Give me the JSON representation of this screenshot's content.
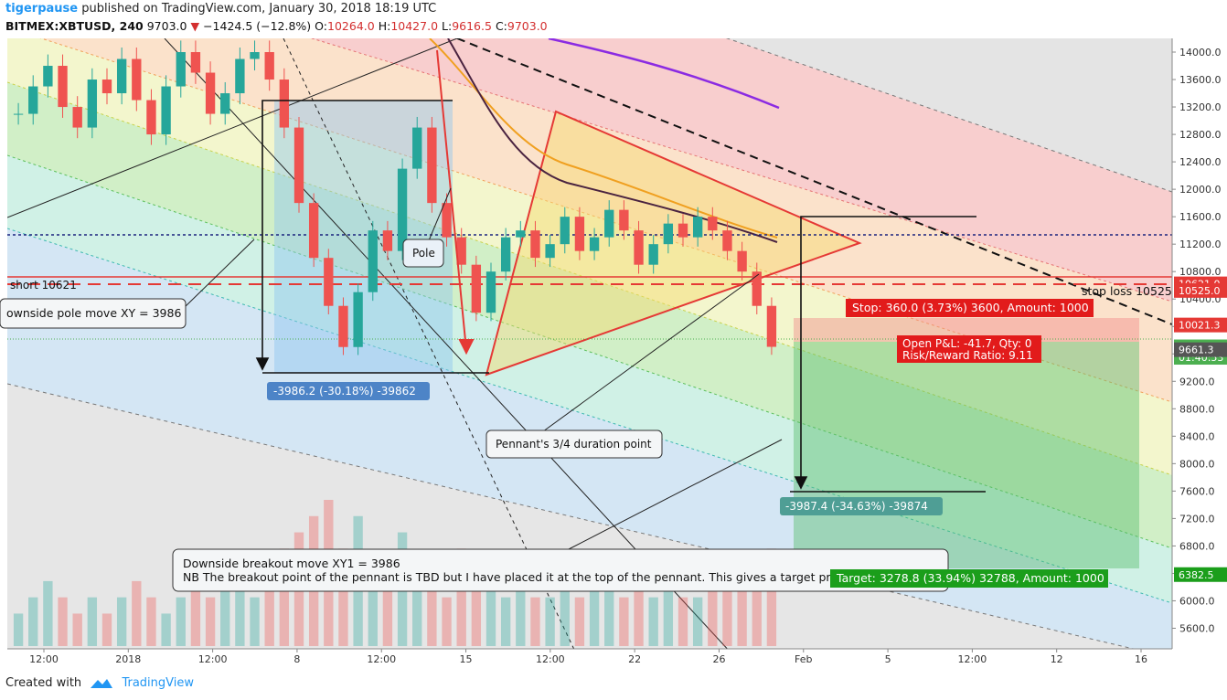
{
  "header": {
    "author": "tigerpause",
    "published_text": "published on TradingView.com, January 30, 2018 18:19 UTC",
    "symbol": "BITMEX:XBTUSD, 240",
    "last_price": "9703.0",
    "change": "−1424.5 (−12.8%)",
    "open_label": "O:",
    "open": "10264.0",
    "high_label": "H:",
    "high": "10427.0",
    "low_label": "L:",
    "low": "9616.5",
    "close_label": "C:",
    "close": "9703.0"
  },
  "footer": {
    "created_with": "Created with",
    "brand": "TradingView"
  },
  "colors": {
    "bull": "#26a69a",
    "bear": "#ef5350",
    "annotation_red": "#e53935",
    "target_green": "#1b9e1b",
    "stop_red": "#e21b1b",
    "blue_label": "#4d84c7",
    "teal_label": "#4f9e95",
    "purple_ma": "#8b2be2"
  },
  "chart_data": {
    "type": "candlestick",
    "title": "",
    "symbol": "BITMEX:XBTUSD",
    "interval": "240",
    "ylim": [
      5300,
      14200
    ],
    "y_ticks": [
      "14000.0",
      "13600.0",
      "13200.0",
      "12800.0",
      "12400.0",
      "12000.0",
      "11600.0",
      "11200.0",
      "10800.0",
      "10400.0",
      "10000.0",
      "9600.0",
      "9200.0",
      "8800.0",
      "8400.0",
      "8000.0",
      "7600.0",
      "7200.0",
      "6800.0",
      "6400.0",
      "6000.0",
      "5600.0"
    ],
    "x_ticks": [
      "12:00",
      "2018",
      "12:00",
      "8",
      "12:00",
      "15",
      "12:00",
      "22",
      "26",
      "Feb",
      "5",
      "12:00",
      "12",
      "16"
    ],
    "close_series": [
      13100,
      13500,
      13800,
      13200,
      12900,
      13600,
      13400,
      13900,
      13300,
      12800,
      13500,
      14000,
      13700,
      13100,
      13400,
      13900,
      14000,
      13600,
      12900,
      11800,
      11000,
      10300,
      9700,
      10500,
      11400,
      11100,
      12300,
      12900,
      11800,
      11300,
      10900,
      10200,
      10800,
      11300,
      11400,
      11000,
      11200,
      11600,
      11100,
      11300,
      11700,
      11400,
      10900,
      11200,
      11500,
      11300,
      11600,
      11400,
      11100,
      10800,
      10300,
      9703
    ],
    "volume_series": [
      2,
      3,
      4,
      3,
      2,
      3,
      2,
      3,
      4,
      3,
      2,
      3,
      4,
      3,
      5,
      4,
      3,
      4,
      6,
      7,
      8,
      9,
      6,
      8,
      5,
      4,
      7,
      5,
      4,
      3,
      6,
      5,
      4,
      3,
      4,
      3,
      3,
      4,
      3,
      5,
      4,
      3,
      4,
      3,
      4,
      3,
      3,
      4,
      5,
      4,
      5,
      6
    ],
    "price_labels": [
      {
        "value": 10621.0,
        "text": "10621.0",
        "color": "#e53935"
      },
      {
        "value": 10525.0,
        "text": "10525.0",
        "color": "#e53935"
      },
      {
        "value": 10021.3,
        "text": "10021.3",
        "color": "#e53935"
      },
      {
        "value": 9703.0,
        "text": "9703.0",
        "color": "#4caf50"
      },
      {
        "value": 9550.0,
        "text": "01:40:53",
        "color": "#4caf50"
      },
      {
        "value": 9661.3,
        "text": "9661.3",
        "color": "#555555"
      },
      {
        "value": 6382.5,
        "text": "6382.5",
        "color": "#1b9e1b"
      }
    ],
    "levels": [
      {
        "name": "short",
        "value": 10621,
        "label": "short 10621"
      },
      {
        "name": "stop loss",
        "value": 10525,
        "label": "stop loss 10525"
      },
      {
        "name": "dotted",
        "value": 11200,
        "label": ""
      }
    ],
    "annotations": {
      "pole": "Pole",
      "pole_move": "ownside pole move XY = 3986",
      "pole_measure": "-3986.2 (-30.18%) -39862",
      "duration": "Pennant's 3/4 duration point",
      "breakout_measure": "-3987.4 (-34.63%) -39874",
      "note_line1": "Downside breakout move XY1 = 3986",
      "note_line2": "NB The breakout point of the pennant is TBD but I have placed it at the top of the pennant.  This gives a target price",
      "stop_box": "Stop: 360.0 (3.73%) 3600, Amount: 1000",
      "pnl_line1": "Open P&L: -41.7, Qty: 0",
      "pnl_line2": "Risk/Reward Ratio: 9.11",
      "target_box": "Target: 3278.8 (33.94%) 32788, Amount: 1000"
    }
  }
}
